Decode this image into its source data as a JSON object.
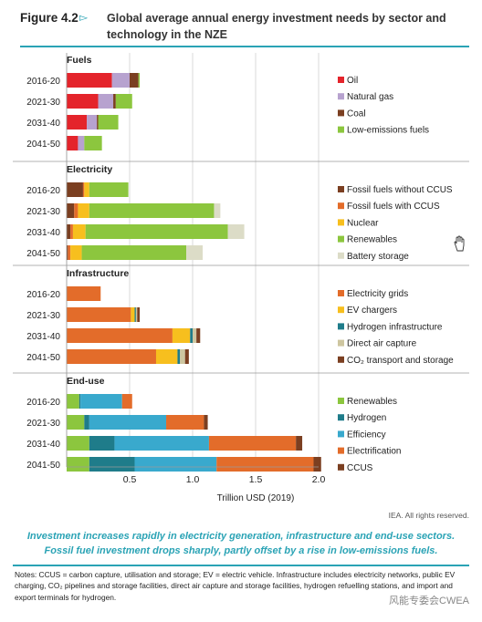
{
  "figure": {
    "label": "Figure 4.2",
    "title": "Global average annual energy investment needs by sector and technology in the NZE",
    "source": "IEA. All rights reserved.",
    "subtitle_line1": "Investment increases rapidly in electricity generation, infrastructure and end-use sectors.",
    "subtitle_line2": "Fossil fuel investment drops sharply, partly offset by a rise in low-emissions fuels.",
    "notes": "Notes: CCUS = carbon capture, utilisation and storage; EV = electric vehicle.  Infrastructure includes electricity networks, public EV charging, CO₂ pipelines and storage facilities, direct air capture and storage facilities, hydrogen refuelling stations, and import and export terminals for hydrogen.",
    "watermark": "风能专委会CWEA"
  },
  "chart_data": {
    "type": "bar",
    "orientation": "horizontal",
    "stacked": true,
    "xlabel": "Trillion USD (2019)",
    "xlim": [
      0,
      2.0
    ],
    "xticks": [
      "0.5",
      "1.0",
      "1.5",
      "2.0"
    ],
    "categories": [
      "2016-20",
      "2021-30",
      "2031-40",
      "2041-50"
    ],
    "panels": [
      {
        "title": "Fuels",
        "series": [
          {
            "name": "Oil",
            "color": "#e4242b",
            "values": [
              0.36,
              0.25,
              0.16,
              0.09
            ]
          },
          {
            "name": "Natural gas",
            "color": "#b7a2cf",
            "values": [
              0.14,
              0.12,
              0.08,
              0.05
            ]
          },
          {
            "name": "Coal",
            "color": "#7b3f21",
            "values": [
              0.07,
              0.02,
              0.01,
              0.0
            ]
          },
          {
            "name": "Low-emissions fuels",
            "color": "#8cc63e",
            "values": [
              0.01,
              0.13,
              0.16,
              0.14
            ]
          }
        ]
      },
      {
        "title": "Electricity",
        "series": [
          {
            "name": "Fossil fuels without CCUS",
            "color": "#7b3f21",
            "values": [
              0.13,
              0.06,
              0.03,
              0.01
            ]
          },
          {
            "name": "Fossil fuels with CCUS",
            "color": "#e36c2a",
            "values": [
              0.01,
              0.03,
              0.02,
              0.02
            ]
          },
          {
            "name": "Nuclear",
            "color": "#f7bf1e",
            "values": [
              0.04,
              0.09,
              0.1,
              0.09
            ]
          },
          {
            "name": "Renewables",
            "color": "#8cc63e",
            "values": [
              0.31,
              0.99,
              1.13,
              0.83
            ]
          },
          {
            "name": "Battery storage",
            "color": "#dcdcc7",
            "values": [
              0.0,
              0.05,
              0.13,
              0.13
            ]
          }
        ]
      },
      {
        "title": "Infrastructure",
        "series": [
          {
            "name": "Electricity grids",
            "color": "#e36c2a",
            "values": [
              0.27,
              0.51,
              0.84,
              0.71
            ]
          },
          {
            "name": "EV chargers",
            "color": "#f7bf1e",
            "values": [
              0.0,
              0.03,
              0.14,
              0.17
            ]
          },
          {
            "name": "Hydrogen infrastructure",
            "color": "#1f7c8a",
            "values": [
              0.0,
              0.01,
              0.02,
              0.02
            ]
          },
          {
            "name": "Direct air capture",
            "color": "#cec6a0",
            "values": [
              0.0,
              0.01,
              0.03,
              0.04
            ]
          },
          {
            "name": "CO₂ transport and storage",
            "color": "#7b3f21",
            "values": [
              0.0,
              0.02,
              0.03,
              0.03
            ]
          }
        ]
      },
      {
        "title": "End-use",
        "series": [
          {
            "name": "Renewables",
            "color": "#8cc63e",
            "values": [
              0.1,
              0.14,
              0.18,
              0.18
            ]
          },
          {
            "name": "Hydrogen",
            "color": "#1f7c8a",
            "values": [
              0.01,
              0.04,
              0.2,
              0.36
            ]
          },
          {
            "name": "Efficiency",
            "color": "#39a9cd",
            "values": [
              0.33,
              0.61,
              0.75,
              0.65
            ]
          },
          {
            "name": "Electrification",
            "color": "#e36c2a",
            "values": [
              0.08,
              0.3,
              0.69,
              0.77
            ]
          },
          {
            "name": "CCUS",
            "color": "#7b3f21",
            "values": [
              0.0,
              0.03,
              0.05,
              0.06
            ]
          }
        ]
      }
    ]
  }
}
